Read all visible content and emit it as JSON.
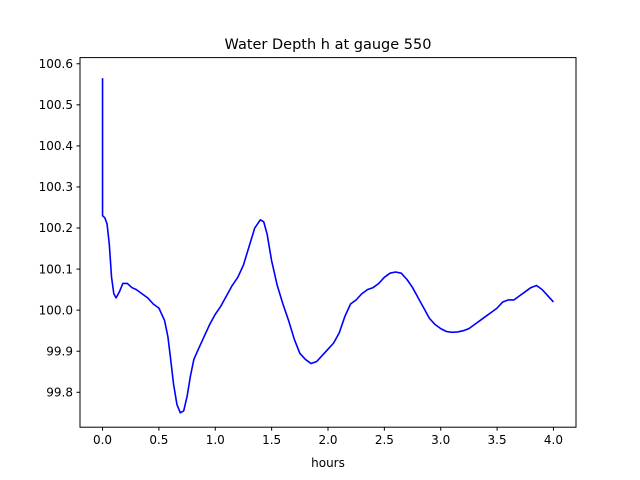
{
  "chart_data": {
    "type": "line",
    "title": "Water Depth h at gauge 550",
    "xlabel": "hours",
    "ylabel": "",
    "xlim": [
      -0.2,
      4.2
    ],
    "ylim": [
      99.715,
      100.615
    ],
    "xticks": [
      0.0,
      0.5,
      1.0,
      1.5,
      2.0,
      2.5,
      3.0,
      3.5,
      4.0
    ],
    "xtick_labels": [
      "0.0",
      "0.5",
      "1.0",
      "1.5",
      "2.0",
      "2.5",
      "3.0",
      "3.5",
      "4.0"
    ],
    "yticks": [
      99.8,
      99.9,
      100.0,
      100.1,
      100.2,
      100.3,
      100.4,
      100.5,
      100.6
    ],
    "ytick_labels": [
      "99.8",
      "99.9",
      "100.0",
      "100.1",
      "100.2",
      "100.3",
      "100.4",
      "100.5",
      "100.6"
    ],
    "grid": false,
    "legend": "none",
    "series": [
      {
        "color": "#0000ff",
        "x": [
          0.0,
          0.0,
          0.02,
          0.04,
          0.06,
          0.08,
          0.1,
          0.12,
          0.15,
          0.18,
          0.22,
          0.26,
          0.3,
          0.35,
          0.4,
          0.45,
          0.5,
          0.55,
          0.58,
          0.6,
          0.63,
          0.66,
          0.69,
          0.72,
          0.75,
          0.78,
          0.81,
          0.85,
          0.9,
          0.95,
          1.0,
          1.05,
          1.1,
          1.15,
          1.2,
          1.25,
          1.3,
          1.35,
          1.4,
          1.43,
          1.46,
          1.5,
          1.55,
          1.6,
          1.65,
          1.7,
          1.75,
          1.8,
          1.85,
          1.9,
          1.95,
          2.0,
          2.05,
          2.1,
          2.15,
          2.2,
          2.25,
          2.3,
          2.35,
          2.4,
          2.45,
          2.5,
          2.55,
          2.6,
          2.65,
          2.7,
          2.75,
          2.8,
          2.85,
          2.9,
          2.95,
          3.0,
          3.05,
          3.1,
          3.15,
          3.2,
          3.25,
          3.3,
          3.35,
          3.4,
          3.45,
          3.5,
          3.55,
          3.6,
          3.65,
          3.7,
          3.75,
          3.8,
          3.85,
          3.9,
          3.95,
          4.0
        ],
        "y": [
          100.565,
          100.23,
          100.225,
          100.21,
          100.16,
          100.08,
          100.04,
          100.03,
          100.045,
          100.065,
          100.065,
          100.055,
          100.05,
          100.04,
          100.03,
          100.015,
          100.005,
          99.975,
          99.935,
          99.89,
          99.82,
          99.77,
          99.75,
          99.755,
          99.79,
          99.84,
          99.88,
          99.905,
          99.935,
          99.965,
          99.99,
          100.01,
          100.035,
          100.06,
          100.08,
          100.11,
          100.155,
          100.2,
          100.22,
          100.215,
          100.185,
          100.12,
          100.06,
          100.015,
          99.975,
          99.93,
          99.895,
          99.88,
          99.87,
          99.875,
          99.89,
          99.905,
          99.92,
          99.945,
          99.985,
          100.015,
          100.025,
          100.04,
          100.05,
          100.055,
          100.065,
          100.08,
          100.09,
          100.093,
          100.09,
          100.075,
          100.055,
          100.03,
          100.005,
          99.98,
          99.965,
          99.955,
          99.948,
          99.946,
          99.947,
          99.95,
          99.955,
          99.965,
          99.975,
          99.985,
          99.995,
          100.005,
          100.02,
          100.025,
          100.025,
          100.035,
          100.045,
          100.055,
          100.06,
          100.05,
          100.035,
          100.02
        ]
      }
    ]
  }
}
